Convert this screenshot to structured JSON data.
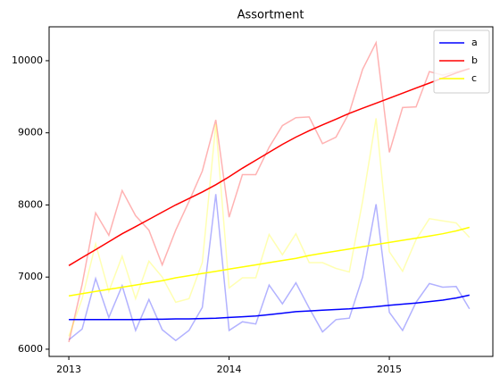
{
  "chart_data": {
    "type": "line",
    "title": "Assortment",
    "x": [
      2013,
      2013.083,
      2013.167,
      2013.25,
      2013.333,
      2013.417,
      2013.5,
      2013.583,
      2013.667,
      2013.75,
      2013.833,
      2013.917,
      2014,
      2014.083,
      2014.167,
      2014.25,
      2014.333,
      2014.417,
      2014.5,
      2014.583,
      2014.667,
      2014.75,
      2014.833,
      2014.917,
      2015,
      2015.083,
      2015.167,
      2015.25,
      2015.333,
      2015.417,
      2015.5
    ],
    "series": [
      {
        "name": "a",
        "color": "#0000ff",
        "values": [
          6410,
          6410,
          6410,
          6410,
          6410,
          6410,
          6415,
          6415,
          6420,
          6420,
          6425,
          6430,
          6440,
          6450,
          6460,
          6480,
          6500,
          6520,
          6530,
          6540,
          6550,
          6560,
          6575,
          6590,
          6610,
          6625,
          6640,
          6660,
          6680,
          6710,
          6750
        ],
        "raw_values": [
          6130,
          6280,
          6980,
          6440,
          6880,
          6260,
          6690,
          6270,
          6120,
          6260,
          6580,
          8150,
          6260,
          6380,
          6350,
          6890,
          6630,
          6920,
          6570,
          6240,
          6410,
          6430,
          7000,
          8010,
          6510,
          6260,
          6650,
          6910,
          6860,
          6870,
          6560
        ]
      },
      {
        "name": "b",
        "color": "#ff0000",
        "values": [
          7160,
          7270,
          7380,
          7490,
          7600,
          7700,
          7800,
          7900,
          8000,
          8090,
          8180,
          8280,
          8390,
          8510,
          8620,
          8730,
          8840,
          8940,
          9030,
          9110,
          9190,
          9270,
          9340,
          9410,
          9480,
          9550,
          9620,
          9690,
          9760,
          9830,
          9890
        ],
        "raw_values": [
          6100,
          6900,
          7890,
          7580,
          8200,
          7850,
          7650,
          7170,
          7650,
          8050,
          8470,
          9180,
          7830,
          8420,
          8420,
          8800,
          9100,
          9210,
          9220,
          8850,
          8940,
          9280,
          9880,
          10250,
          8730,
          9350,
          9360,
          9850,
          9800,
          9850,
          9890
        ]
      },
      {
        "name": "c",
        "color": "#ffff00",
        "values": [
          6740,
          6770,
          6800,
          6830,
          6860,
          6890,
          6920,
          6950,
          6990,
          7020,
          7050,
          7080,
          7110,
          7140,
          7170,
          7200,
          7230,
          7260,
          7300,
          7330,
          7360,
          7390,
          7420,
          7450,
          7480,
          7510,
          7540,
          7570,
          7600,
          7640,
          7690
        ],
        "raw_values": [
          6180,
          6700,
          7460,
          6800,
          7290,
          6700,
          7220,
          7000,
          6650,
          6700,
          7200,
          9120,
          6850,
          6990,
          6990,
          7590,
          7310,
          7600,
          7200,
          7200,
          7120,
          7070,
          8050,
          9200,
          7350,
          7080,
          7520,
          7810,
          7780,
          7750,
          7550
        ]
      }
    ],
    "xlim": [
      2012.877,
      2015.646
    ],
    "xticks": [
      2013,
      2014,
      2015
    ],
    "ylim": [
      5900,
      10470
    ],
    "yticks": [
      6000,
      7000,
      8000,
      9000,
      10000
    ],
    "legend": "upper right"
  }
}
